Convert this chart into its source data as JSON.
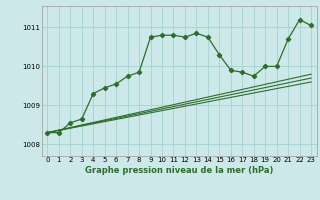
{
  "title": "Graphe pression niveau de la mer (hPa)",
  "bg_color": "#cce8e8",
  "grid_color": "#aad4d4",
  "line_color": "#2d6e2d",
  "xlim": [
    -0.5,
    23.5
  ],
  "ylim": [
    1007.7,
    1011.55
  ],
  "yticks": [
    1008,
    1009,
    1010,
    1011
  ],
  "xticks": [
    0,
    1,
    2,
    3,
    4,
    5,
    6,
    7,
    8,
    9,
    10,
    11,
    12,
    13,
    14,
    15,
    16,
    17,
    18,
    19,
    20,
    21,
    22,
    23
  ],
  "series1_x": [
    0,
    1,
    2,
    3,
    4,
    5,
    6,
    7,
    8,
    9,
    10,
    11,
    12,
    13,
    14,
    15,
    16,
    17,
    18,
    19,
    20,
    21,
    22,
    23
  ],
  "series1_y": [
    1008.3,
    1008.3,
    1008.55,
    1008.65,
    1009.3,
    1009.45,
    1009.55,
    1009.75,
    1009.85,
    1010.75,
    1010.8,
    1010.8,
    1010.75,
    1010.85,
    1010.75,
    1010.3,
    1009.9,
    1009.85,
    1009.75,
    1010.0,
    1010.0,
    1010.7,
    1011.2,
    1011.05
  ],
  "trend1_x": [
    0,
    23
  ],
  "trend1_y": [
    1008.3,
    1009.7
  ],
  "trend2_x": [
    0,
    23
  ],
  "trend2_y": [
    1008.3,
    1009.6
  ],
  "trend3_x": [
    0,
    23
  ],
  "trend3_y": [
    1008.3,
    1009.8
  ]
}
